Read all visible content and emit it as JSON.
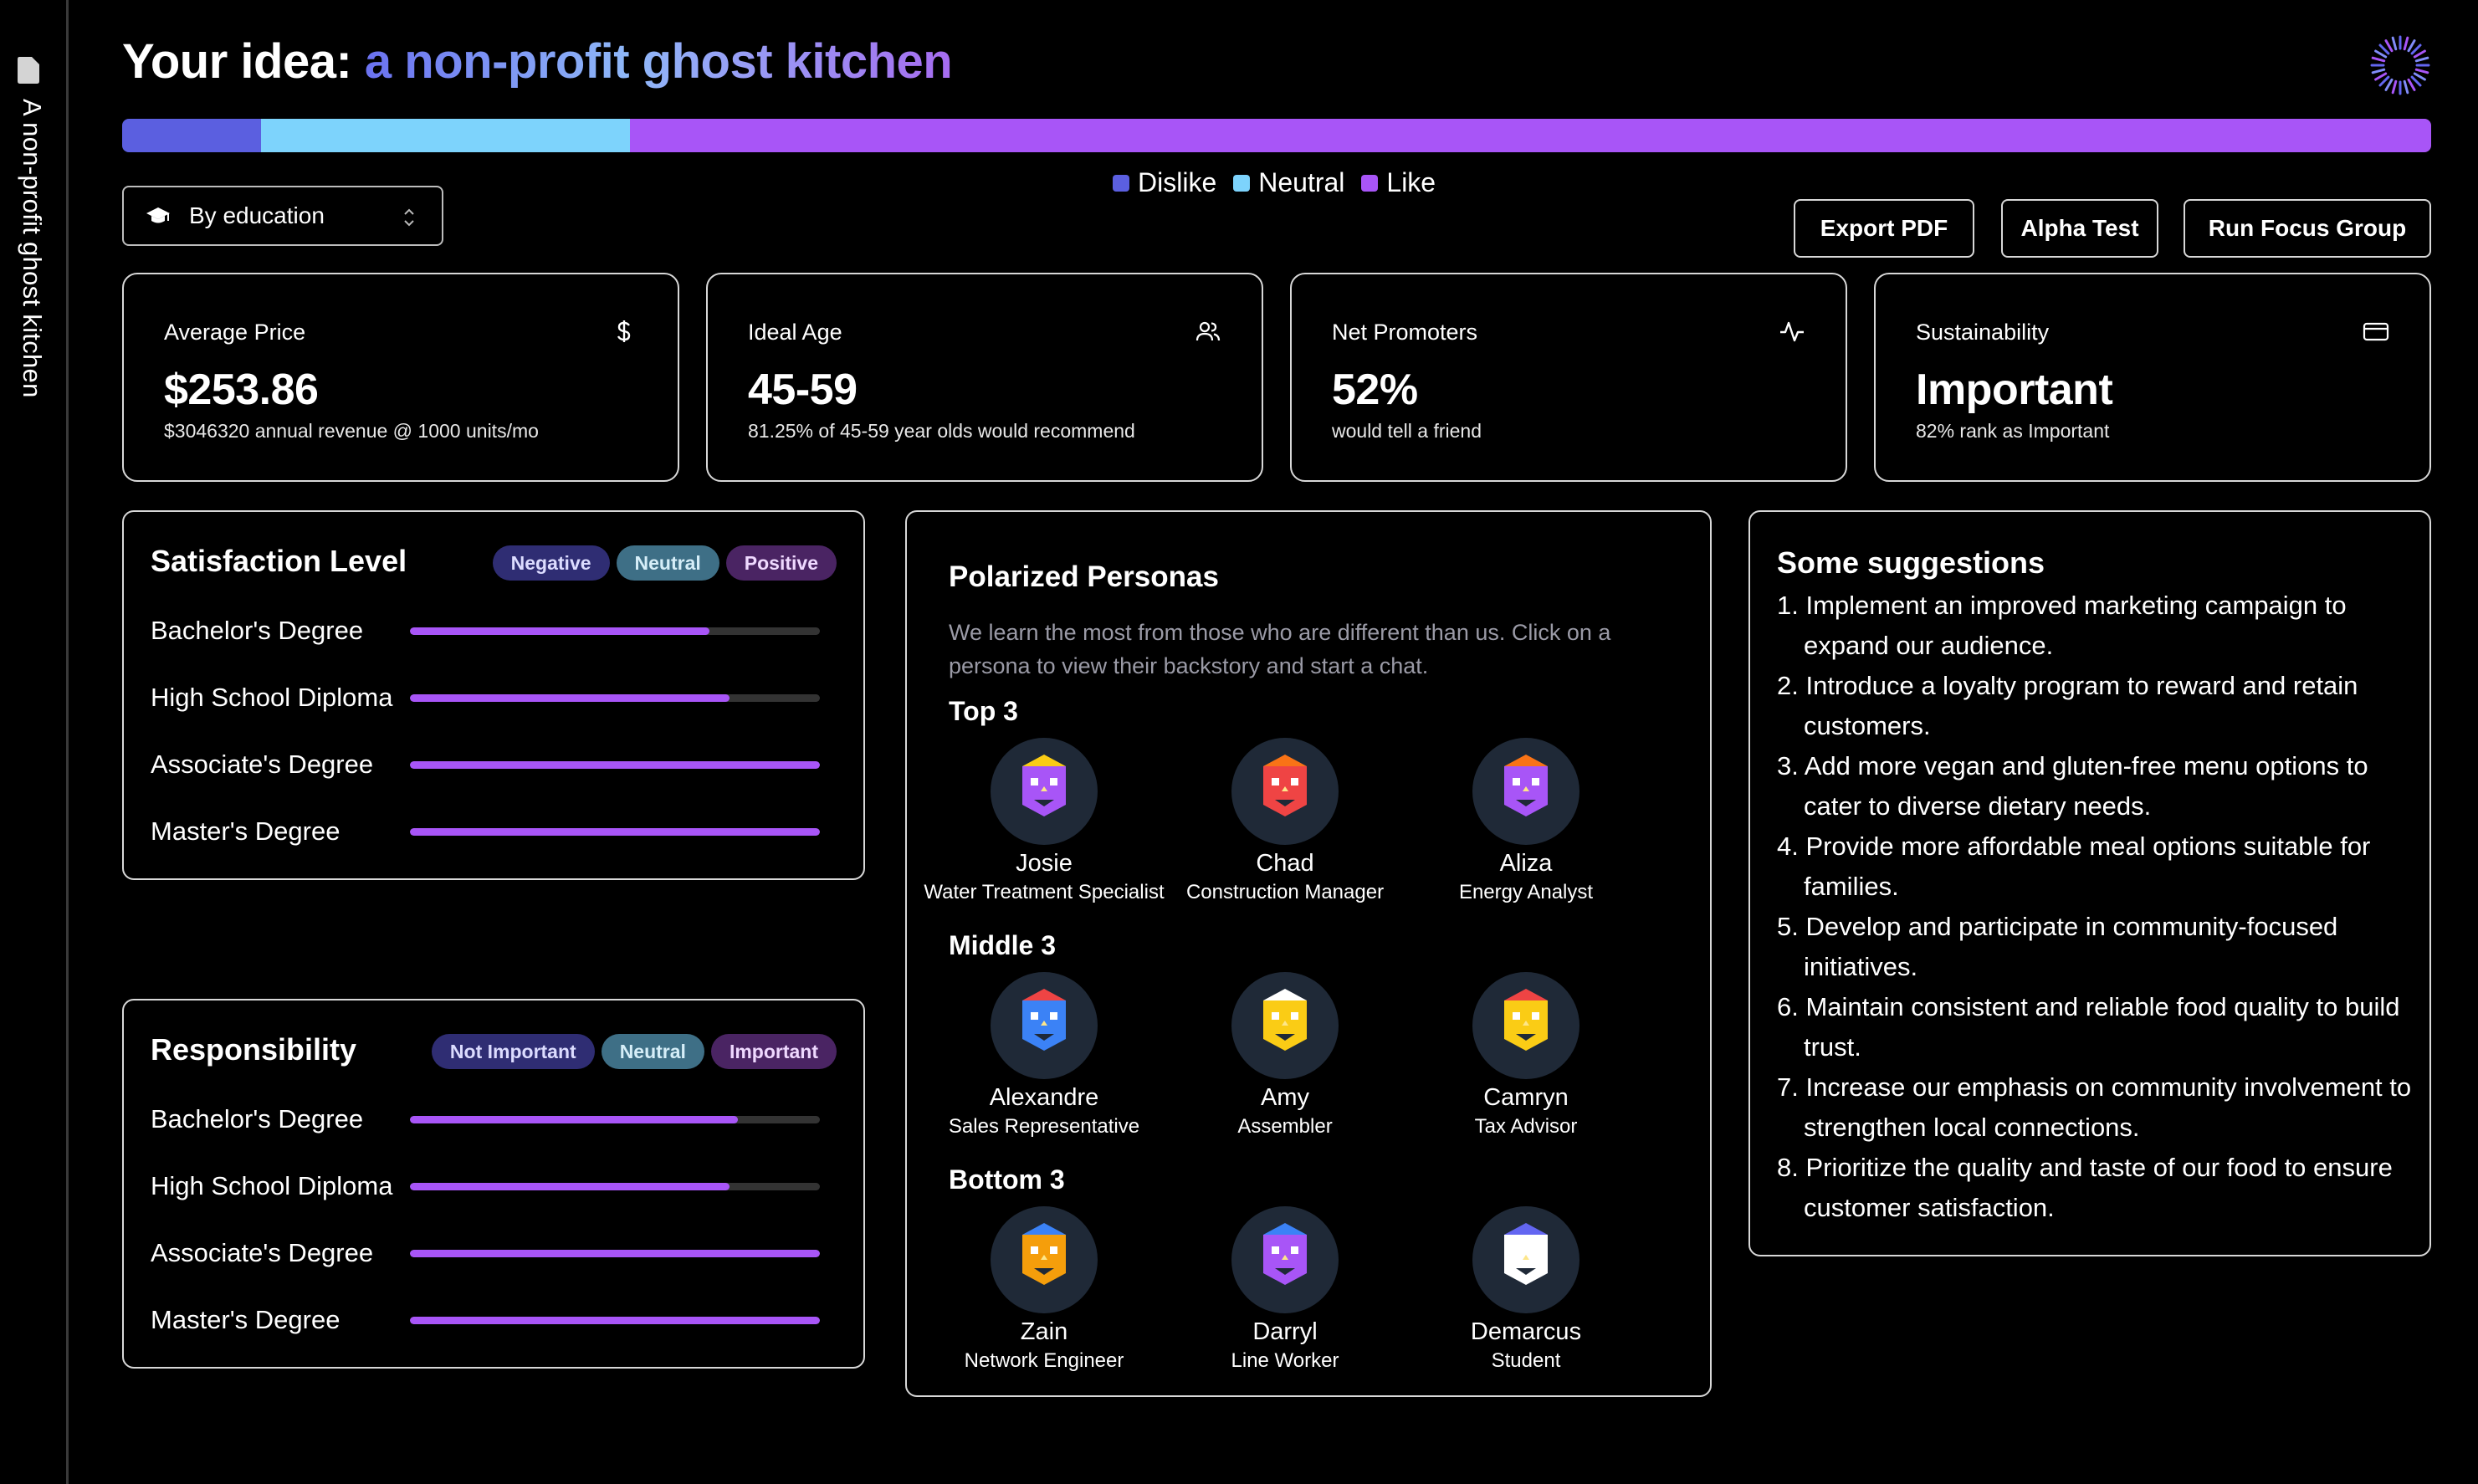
{
  "sidebar": {
    "label": "A non-profit ghost kitchen",
    "icon": "file-icon"
  },
  "header": {
    "title_prefix": "Your idea: ",
    "title_idea": "a non-profit ghost kitchen",
    "status_icon": "loading-spinner-icon"
  },
  "sentiment": {
    "dislike_fraction": 0.06,
    "neutral_fraction": 0.16,
    "like_fraction": 0.78,
    "colors": {
      "dislike": "#5b5fe0",
      "neutral": "#7dd3fc",
      "like": "#a855f7"
    },
    "legend": [
      "Dislike",
      "Neutral",
      "Like"
    ]
  },
  "controls": {
    "group_select": "By education",
    "export_label": "Export PDF",
    "alpha_label": "Alpha Test",
    "run_label": "Run Focus Group"
  },
  "stats": [
    {
      "label": "Average Price",
      "icon": "dollar-icon",
      "value": "$253.86",
      "sub": "$3046320 annual revenue @ 1000 units/mo"
    },
    {
      "label": "Ideal Age",
      "icon": "users-icon",
      "value": "45-59",
      "sub": "81.25% of 45-59 year olds would recommend"
    },
    {
      "label": "Net Promoters",
      "icon": "activity-icon",
      "value": "52%",
      "sub": "would tell a friend"
    },
    {
      "label": "Sustainability",
      "icon": "credit-card-icon",
      "value": "Important",
      "sub": "82% rank as Important"
    }
  ],
  "satisfaction": {
    "title": "Satisfaction Level",
    "pills": [
      "Negative",
      "Neutral",
      "Positive"
    ],
    "rows": [
      {
        "label": "Bachelor's Degree",
        "value": 0.73
      },
      {
        "label": "High School Diploma",
        "value": 0.78
      },
      {
        "label": "Associate's Degree",
        "value": 1.0
      },
      {
        "label": "Master's Degree",
        "value": 1.0
      }
    ]
  },
  "responsibility": {
    "title": "Responsibility",
    "pills": [
      "Not Important",
      "Neutral",
      "Important"
    ],
    "rows": [
      {
        "label": "Bachelor's Degree",
        "value": 0.8
      },
      {
        "label": "High School Diploma",
        "value": 0.78
      },
      {
        "label": "Associate's Degree",
        "value": 1.0
      },
      {
        "label": "Master's Degree",
        "value": 1.0
      }
    ]
  },
  "personas": {
    "title": "Polarized Personas",
    "description": "We learn the most from those who are different than us. Click on a persona to view their backstory and start a chat.",
    "groups": [
      {
        "title": "Top 3",
        "people": [
          {
            "name": "Josie",
            "role": "Water Treatment Specialist",
            "face": "#a855f7",
            "hat": "#facc15"
          },
          {
            "name": "Chad",
            "role": "Construction Manager",
            "face": "#ef4444",
            "hat": "#f97316"
          },
          {
            "name": "Aliza",
            "role": "Energy Analyst",
            "face": "#a855f7",
            "hat": "#f97316"
          }
        ]
      },
      {
        "title": "Middle 3",
        "people": [
          {
            "name": "Alexandre",
            "role": "Sales Representative",
            "face": "#3b82f6",
            "hat": "#ef4444"
          },
          {
            "name": "Amy",
            "role": "Assembler",
            "face": "#facc15",
            "hat": "#ffffff"
          },
          {
            "name": "Camryn",
            "role": "Tax Advisor",
            "face": "#facc15",
            "hat": "#ef4444"
          }
        ]
      },
      {
        "title": "Bottom 3",
        "people": [
          {
            "name": "Zain",
            "role": "Network Engineer",
            "face": "#f59e0b",
            "hat": "#3b82f6"
          },
          {
            "name": "Darryl",
            "role": "Line Worker",
            "face": "#a855f7",
            "hat": "#3b82f6"
          },
          {
            "name": "Demarcus",
            "role": "Student",
            "face": "#ffffff",
            "hat": "#6366f1"
          }
        ]
      }
    ]
  },
  "suggestions": {
    "title": "Some suggestions",
    "items": [
      "1. Implement an improved marketing campaign to expand our audience.",
      "2. Introduce a loyalty program to reward and retain customers.",
      "3. Add more vegan and gluten-free menu options to cater to diverse dietary needs.",
      "4. Provide more affordable meal options suitable for families.",
      "5. Develop and participate in community-focused initiatives.",
      "6. Maintain consistent and reliable food quality to build trust.",
      "7. Increase our emphasis on community involvement to strengthen local connections.",
      "8. Prioritize the quality and taste of our food to ensure customer satisfaction."
    ]
  }
}
